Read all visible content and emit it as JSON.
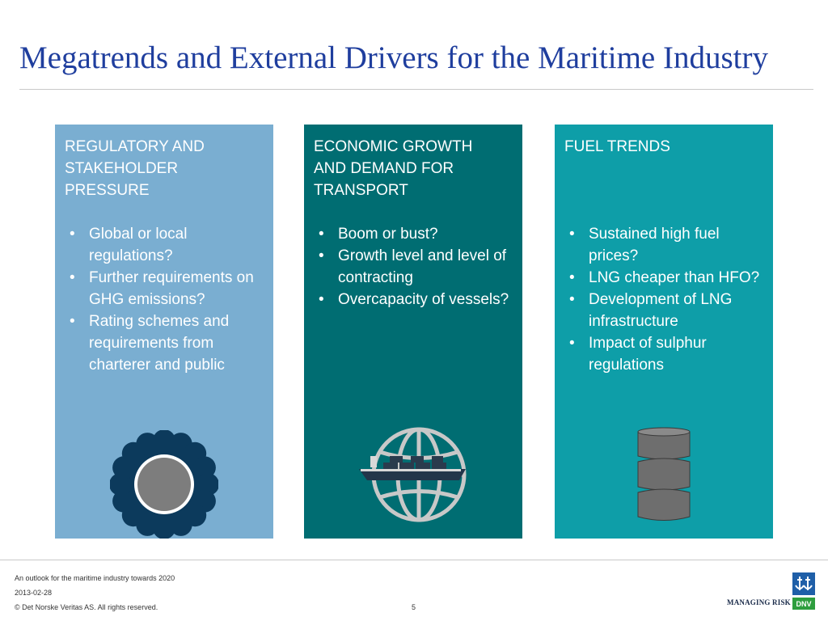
{
  "slide": {
    "title": "Megatrends and External Drivers for the Maritime Industry"
  },
  "panels": [
    {
      "heading": "REGULATORY AND\nSTAKEHOLDER\nPRESSURE",
      "bullets": [
        "Global or local regulations?",
        "Further requirements on GHG emissions?",
        "Rating schemes and requirements from charterer and public"
      ],
      "icon": "gear-icon",
      "color": "#7aaed1"
    },
    {
      "heading": "ECONOMIC GROWTH\nAND DEMAND FOR\nTRANSPORT",
      "bullets": [
        "Boom or bust?",
        "Growth level and level of contracting",
        "Overcapacity of vessels?"
      ],
      "icon": "globe-ship-icon",
      "color": "#006d72"
    },
    {
      "heading": "FUEL TRENDS",
      "bullets": [
        "Sustained high fuel prices?",
        "LNG cheaper than HFO?",
        "Development of LNG infrastructure",
        "Impact of sulphur regulations"
      ],
      "icon": "oil-barrel-icon",
      "color": "#0e9ea8"
    }
  ],
  "footer": {
    "subtitle": "An outlook for the maritime industry towards 2020",
    "date": "2013-02-28",
    "copyright": "© Det Norske Veritas AS. All rights reserved.",
    "page_number": "5",
    "tagline": "MANAGING RISK",
    "logo_text": "DNV"
  }
}
